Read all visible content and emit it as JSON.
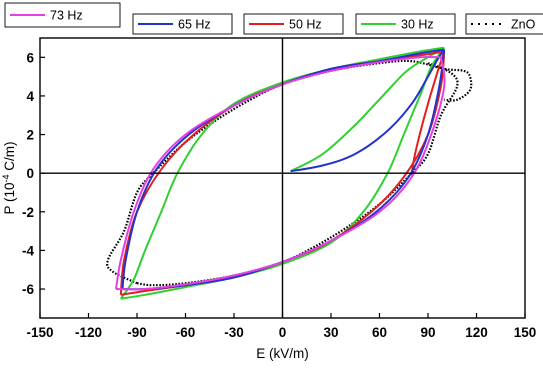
{
  "chart_data": {
    "type": "line",
    "title": "",
    "xlabel": "E (kV/m)",
    "ylabel_main": "P (10",
    "ylabel_exp": "-4",
    "ylabel_unit": " C/m)",
    "xlim": [
      -150,
      150
    ],
    "ylim": [
      -7.5,
      7
    ],
    "xticks": [
      "-150",
      "-120",
      "-90",
      "-60",
      "-30",
      "0",
      "30",
      "60",
      "90",
      "120",
      "150"
    ],
    "yticks": [
      "-6",
      "-4",
      "-2",
      "0",
      "2",
      "4",
      "6"
    ],
    "xtick_values": [
      -150,
      -120,
      -90,
      -60,
      -30,
      0,
      30,
      60,
      90,
      120,
      150
    ],
    "ytick_values": [
      -6,
      -4,
      -2,
      0,
      2,
      4,
      6
    ],
    "grid": false,
    "legend_position": "top",
    "series": [
      {
        "name": "73 Hz",
        "color": "#e43ee4",
        "style": "solid",
        "initial": [],
        "upper": [
          [
            -103,
            -6.0
          ],
          [
            -100,
            -4.5
          ],
          [
            -92,
            -2.0
          ],
          [
            -80,
            0.2
          ],
          [
            -60,
            2.0
          ],
          [
            -30,
            3.5
          ],
          [
            0,
            4.6
          ],
          [
            30,
            5.3
          ],
          [
            60,
            5.75
          ],
          [
            85,
            6.0
          ],
          [
            98,
            6.0
          ]
        ],
        "lower": [
          [
            98,
            6.0
          ],
          [
            100,
            4.5
          ],
          [
            92,
            2.0
          ],
          [
            80,
            -0.2
          ],
          [
            60,
            -2.0
          ],
          [
            30,
            -3.5
          ],
          [
            0,
            -4.6
          ],
          [
            -30,
            -5.3
          ],
          [
            -60,
            -5.75
          ],
          [
            -85,
            -6.0
          ],
          [
            -103,
            -6.0
          ]
        ]
      },
      {
        "name": "65 Hz",
        "color": "#2233cc",
        "style": "solid",
        "initial": [
          [
            5,
            0.1
          ],
          [
            25,
            0.4
          ],
          [
            45,
            1.0
          ],
          [
            65,
            2.2
          ],
          [
            80,
            3.6
          ],
          [
            90,
            5.0
          ],
          [
            96,
            5.9
          ],
          [
            100,
            6.4
          ]
        ],
        "upper": [
          [
            -99,
            -6.0
          ],
          [
            -97,
            -4.5
          ],
          [
            -90,
            -2.0
          ],
          [
            -78,
            0.2
          ],
          [
            -58,
            2.0
          ],
          [
            -30,
            3.5
          ],
          [
            0,
            4.6
          ],
          [
            30,
            5.4
          ],
          [
            60,
            5.8
          ],
          [
            85,
            6.2
          ],
          [
            100,
            6.4
          ]
        ],
        "lower": [
          [
            100,
            6.4
          ],
          [
            97,
            4.5
          ],
          [
            90,
            2.0
          ],
          [
            78,
            -0.2
          ],
          [
            58,
            -2.0
          ],
          [
            30,
            -3.5
          ],
          [
            0,
            -4.6
          ],
          [
            -30,
            -5.4
          ],
          [
            -60,
            -5.8
          ],
          [
            -85,
            -6.0
          ],
          [
            -99,
            -6.0
          ]
        ]
      },
      {
        "name": "50 Hz",
        "color": "#e02020",
        "style": "solid",
        "initial": [
          [
            100,
            6.3
          ],
          [
            95,
            5.0
          ],
          [
            88,
            3.0
          ],
          [
            82,
            1.0
          ],
          [
            80,
            0.0
          ]
        ],
        "upper": [
          [
            -100,
            -6.3
          ],
          [
            -98,
            -4.5
          ],
          [
            -90,
            -2.0
          ],
          [
            -75,
            0.2
          ],
          [
            -55,
            2.0
          ],
          [
            -28,
            3.6
          ],
          [
            0,
            4.6
          ],
          [
            30,
            5.4
          ],
          [
            60,
            5.8
          ],
          [
            85,
            6.1
          ],
          [
            100,
            6.3
          ]
        ],
        "lower": [
          [
            100,
            6.3
          ],
          [
            98,
            4.5
          ],
          [
            90,
            2.0
          ],
          [
            75,
            -0.2
          ],
          [
            55,
            -2.0
          ],
          [
            28,
            -3.6
          ],
          [
            0,
            -4.6
          ],
          [
            -30,
            -5.4
          ],
          [
            -60,
            -5.8
          ],
          [
            -85,
            -6.1
          ],
          [
            -100,
            -6.3
          ]
        ]
      },
      {
        "name": "30 Hz",
        "color": "#30d030",
        "style": "solid",
        "initial": [
          [
            5,
            0.1
          ],
          [
            25,
            1.0
          ],
          [
            45,
            2.5
          ],
          [
            62,
            4.0
          ],
          [
            77,
            5.3
          ],
          [
            90,
            6.0
          ],
          [
            100,
            6.5
          ]
        ],
        "upper": [
          [
            -100,
            -6.5
          ],
          [
            -92,
            -5.5
          ],
          [
            -85,
            -4.0
          ],
          [
            -75,
            -2.0
          ],
          [
            -65,
            0.0
          ],
          [
            -50,
            2.0
          ],
          [
            -30,
            3.6
          ],
          [
            0,
            4.7
          ],
          [
            30,
            5.4
          ],
          [
            60,
            5.9
          ],
          [
            85,
            6.3
          ],
          [
            100,
            6.5
          ]
        ],
        "lower": [
          [
            100,
            6.5
          ],
          [
            92,
            5.5
          ],
          [
            85,
            4.0
          ],
          [
            75,
            2.0
          ],
          [
            65,
            0.0
          ],
          [
            50,
            -2.0
          ],
          [
            30,
            -3.6
          ],
          [
            0,
            -4.7
          ],
          [
            -30,
            -5.4
          ],
          [
            -60,
            -5.9
          ],
          [
            -85,
            -6.3
          ],
          [
            -100,
            -6.5
          ]
        ]
      },
      {
        "name": "ZnO",
        "color": "#000000",
        "style": "dotted",
        "initial": [],
        "upper": [
          [
            -90,
            -5.7
          ],
          [
            -105,
            -5.1
          ],
          [
            -108,
            -4.5
          ],
          [
            -98,
            -3.0
          ],
          [
            -90,
            -1.0
          ],
          [
            -80,
            0.0
          ],
          [
            -60,
            1.6
          ],
          [
            -40,
            2.8
          ],
          [
            -20,
            3.8
          ],
          [
            0,
            4.6
          ],
          [
            30,
            5.3
          ],
          [
            60,
            5.7
          ],
          [
            80,
            5.8
          ],
          [
            100,
            5.4
          ],
          [
            112,
            5.3
          ],
          [
            116,
            5.0
          ],
          [
            116,
            4.3
          ],
          [
            108,
            3.8
          ],
          [
            100,
            3.8
          ]
        ],
        "lower": [
          [
            90,
            5.7
          ],
          [
            104,
            5.2
          ],
          [
            108,
            4.5
          ],
          [
            98,
            3.0
          ],
          [
            90,
            1.0
          ],
          [
            80,
            0.0
          ],
          [
            60,
            -1.6
          ],
          [
            40,
            -2.8
          ],
          [
            20,
            -3.8
          ],
          [
            0,
            -4.6
          ],
          [
            -30,
            -5.3
          ],
          [
            -60,
            -5.7
          ],
          [
            -80,
            -5.8
          ],
          [
            -90,
            -5.7
          ]
        ]
      }
    ]
  }
}
